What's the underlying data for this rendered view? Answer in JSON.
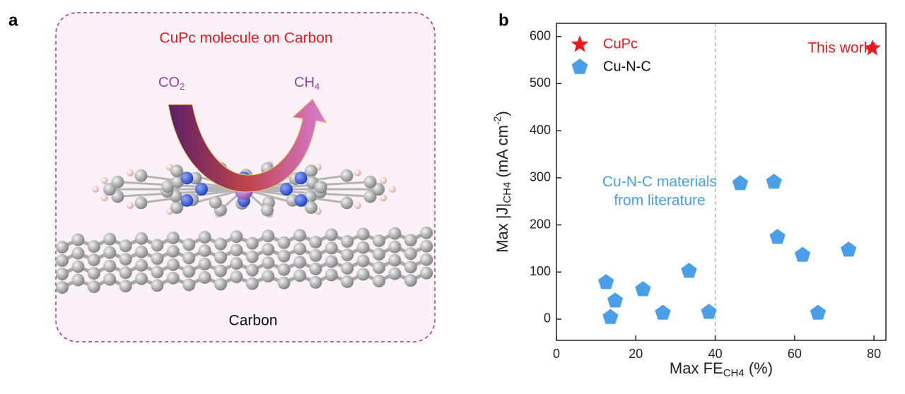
{
  "panel_a": {
    "label": "a",
    "title": "CuPc molecule on Carbon",
    "reactant": {
      "main": "CO",
      "sub": "2"
    },
    "product": {
      "main": "CH",
      "sub": "4"
    },
    "substrate": "Carbon"
  },
  "chart_data": {
    "label": "b",
    "type": "scatter",
    "xlabel": {
      "main": "Max FE",
      "sub": "CH4",
      "post": " (%)"
    },
    "ylabel": {
      "main": "Max |J|",
      "sub": "CH4",
      "pre": " (mA cm",
      "sup": "-2",
      "post": ")"
    },
    "xlim": [
      0,
      83
    ],
    "ylim": [
      -45,
      628
    ],
    "xticks": [
      0,
      20,
      40,
      60,
      80
    ],
    "yticks": [
      0,
      100,
      200,
      300,
      400,
      500,
      600
    ],
    "reference_lines": {
      "x": [
        40
      ]
    },
    "series": [
      {
        "name": "CuPc",
        "color": "#e8191f",
        "label_color": "#e8191f",
        "marker": "star",
        "x": [
          79.6
        ],
        "values": [
          575
        ]
      },
      {
        "name": "Cu-N-C",
        "color": "#4a9fe8",
        "label_color": "#111111",
        "marker": "pentagon",
        "x": [
          12.5,
          14.8,
          13.6,
          21.8,
          26.8,
          33.4,
          38.4,
          46.3,
          54.8,
          55.7,
          62.0,
          65.9,
          73.6
        ],
        "values": [
          78,
          39,
          4,
          63,
          13,
          102,
          15,
          288,
          291,
          174,
          136,
          13,
          147
        ]
      }
    ],
    "annotations": [
      {
        "text": "This work*",
        "x": 72,
        "y": 574,
        "color": "#e8191f"
      },
      {
        "text": "Cu-N-C materials",
        "x": 26,
        "y": 290,
        "color": "#4a9fe8"
      },
      {
        "text": "from literature",
        "x": 26,
        "y": 250,
        "color": "#4a9fe8"
      }
    ]
  }
}
